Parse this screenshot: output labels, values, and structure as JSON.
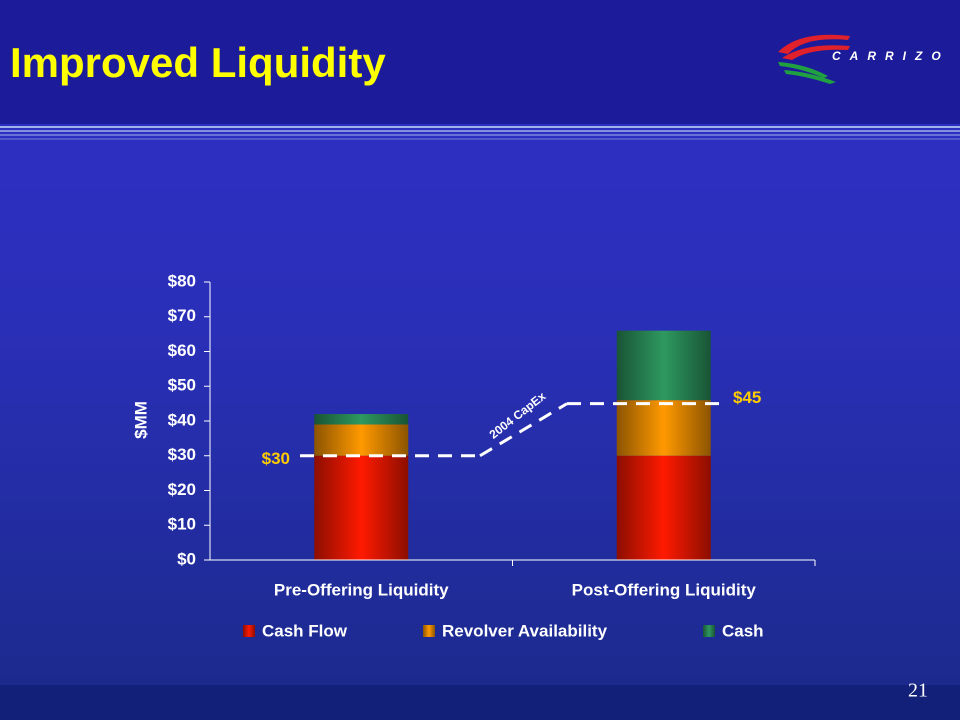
{
  "title": "Improved Liquidity",
  "logo": "CARRIZO",
  "page_number": "21",
  "chart_data": {
    "type": "bar",
    "stacked": true,
    "y_label": "$MM",
    "categories": [
      "Pre-Offering Liquidity",
      "Post-Offering Liquidity"
    ],
    "series": [
      {
        "name": "Cash Flow",
        "color": "#ff1a00",
        "values": [
          30,
          30
        ]
      },
      {
        "name": "Revolver Availability",
        "color": "#ff9900",
        "values": [
          9,
          16
        ]
      },
      {
        "name": "Cash",
        "color": "#2e9960",
        "values": [
          3,
          20
        ]
      }
    ],
    "ylim": [
      0,
      80
    ],
    "yticks": [
      {
        "value": 0,
        "label": "$0"
      },
      {
        "value": 10,
        "label": "$10"
      },
      {
        "value": 20,
        "label": "$20"
      },
      {
        "value": 30,
        "label": "$30"
      },
      {
        "value": 40,
        "label": "$40"
      },
      {
        "value": 50,
        "label": "$50"
      },
      {
        "value": 60,
        "label": "$60"
      },
      {
        "value": 70,
        "label": "$70"
      },
      {
        "value": 80,
        "label": "$80"
      }
    ],
    "capex_line": {
      "name": "2004 CapEx",
      "color": "#ffffff",
      "values": [
        30,
        45
      ],
      "value_labels": [
        "$30",
        "$45"
      ]
    },
    "legend": "bottom"
  }
}
